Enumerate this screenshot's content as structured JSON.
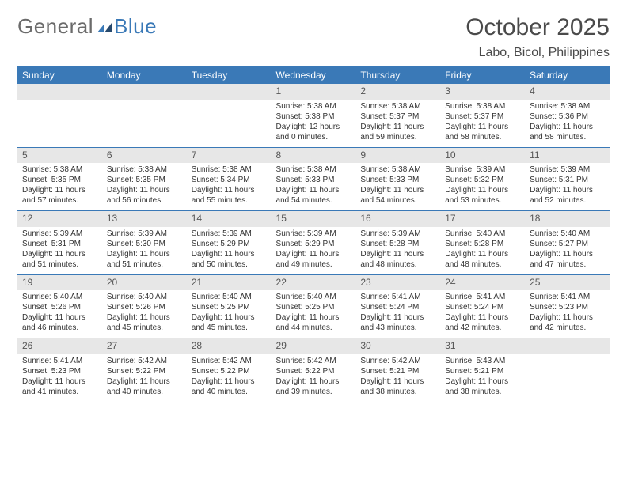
{
  "brand": {
    "general": "General",
    "blue": "Blue"
  },
  "title": "October 2025",
  "subtitle": "Labo, Bicol, Philippines",
  "colors": {
    "header_bg": "#3a79b7",
    "header_text": "#ffffff",
    "daynum_bg": "#e7e7e7",
    "text": "#333333",
    "title_color": "#4a4a4a",
    "logo_gray": "#6b6b6b",
    "logo_blue": "#3a79b7",
    "background": "#ffffff",
    "week_sep": "#3a79b7"
  },
  "typography": {
    "title_fontsize": 30,
    "subtitle_fontsize": 16,
    "dayheader_fontsize": 12,
    "daynum_fontsize": 12,
    "body_fontsize": 10
  },
  "day_headers": [
    "Sunday",
    "Monday",
    "Tuesday",
    "Wednesday",
    "Thursday",
    "Friday",
    "Saturday"
  ],
  "weeks": [
    [
      null,
      null,
      null,
      {
        "num": "1",
        "sunrise": "5:38 AM",
        "sunset": "5:38 PM",
        "dl1": "Daylight: 12 hours",
        "dl2": "and 0 minutes."
      },
      {
        "num": "2",
        "sunrise": "5:38 AM",
        "sunset": "5:37 PM",
        "dl1": "Daylight: 11 hours",
        "dl2": "and 59 minutes."
      },
      {
        "num": "3",
        "sunrise": "5:38 AM",
        "sunset": "5:37 PM",
        "dl1": "Daylight: 11 hours",
        "dl2": "and 58 minutes."
      },
      {
        "num": "4",
        "sunrise": "5:38 AM",
        "sunset": "5:36 PM",
        "dl1": "Daylight: 11 hours",
        "dl2": "and 58 minutes."
      }
    ],
    [
      {
        "num": "5",
        "sunrise": "5:38 AM",
        "sunset": "5:35 PM",
        "dl1": "Daylight: 11 hours",
        "dl2": "and 57 minutes."
      },
      {
        "num": "6",
        "sunrise": "5:38 AM",
        "sunset": "5:35 PM",
        "dl1": "Daylight: 11 hours",
        "dl2": "and 56 minutes."
      },
      {
        "num": "7",
        "sunrise": "5:38 AM",
        "sunset": "5:34 PM",
        "dl1": "Daylight: 11 hours",
        "dl2": "and 55 minutes."
      },
      {
        "num": "8",
        "sunrise": "5:38 AM",
        "sunset": "5:33 PM",
        "dl1": "Daylight: 11 hours",
        "dl2": "and 54 minutes."
      },
      {
        "num": "9",
        "sunrise": "5:38 AM",
        "sunset": "5:33 PM",
        "dl1": "Daylight: 11 hours",
        "dl2": "and 54 minutes."
      },
      {
        "num": "10",
        "sunrise": "5:39 AM",
        "sunset": "5:32 PM",
        "dl1": "Daylight: 11 hours",
        "dl2": "and 53 minutes."
      },
      {
        "num": "11",
        "sunrise": "5:39 AM",
        "sunset": "5:31 PM",
        "dl1": "Daylight: 11 hours",
        "dl2": "and 52 minutes."
      }
    ],
    [
      {
        "num": "12",
        "sunrise": "5:39 AM",
        "sunset": "5:31 PM",
        "dl1": "Daylight: 11 hours",
        "dl2": "and 51 minutes."
      },
      {
        "num": "13",
        "sunrise": "5:39 AM",
        "sunset": "5:30 PM",
        "dl1": "Daylight: 11 hours",
        "dl2": "and 51 minutes."
      },
      {
        "num": "14",
        "sunrise": "5:39 AM",
        "sunset": "5:29 PM",
        "dl1": "Daylight: 11 hours",
        "dl2": "and 50 minutes."
      },
      {
        "num": "15",
        "sunrise": "5:39 AM",
        "sunset": "5:29 PM",
        "dl1": "Daylight: 11 hours",
        "dl2": "and 49 minutes."
      },
      {
        "num": "16",
        "sunrise": "5:39 AM",
        "sunset": "5:28 PM",
        "dl1": "Daylight: 11 hours",
        "dl2": "and 48 minutes."
      },
      {
        "num": "17",
        "sunrise": "5:40 AM",
        "sunset": "5:28 PM",
        "dl1": "Daylight: 11 hours",
        "dl2": "and 48 minutes."
      },
      {
        "num": "18",
        "sunrise": "5:40 AM",
        "sunset": "5:27 PM",
        "dl1": "Daylight: 11 hours",
        "dl2": "and 47 minutes."
      }
    ],
    [
      {
        "num": "19",
        "sunrise": "5:40 AM",
        "sunset": "5:26 PM",
        "dl1": "Daylight: 11 hours",
        "dl2": "and 46 minutes."
      },
      {
        "num": "20",
        "sunrise": "5:40 AM",
        "sunset": "5:26 PM",
        "dl1": "Daylight: 11 hours",
        "dl2": "and 45 minutes."
      },
      {
        "num": "21",
        "sunrise": "5:40 AM",
        "sunset": "5:25 PM",
        "dl1": "Daylight: 11 hours",
        "dl2": "and 45 minutes."
      },
      {
        "num": "22",
        "sunrise": "5:40 AM",
        "sunset": "5:25 PM",
        "dl1": "Daylight: 11 hours",
        "dl2": "and 44 minutes."
      },
      {
        "num": "23",
        "sunrise": "5:41 AM",
        "sunset": "5:24 PM",
        "dl1": "Daylight: 11 hours",
        "dl2": "and 43 minutes."
      },
      {
        "num": "24",
        "sunrise": "5:41 AM",
        "sunset": "5:24 PM",
        "dl1": "Daylight: 11 hours",
        "dl2": "and 42 minutes."
      },
      {
        "num": "25",
        "sunrise": "5:41 AM",
        "sunset": "5:23 PM",
        "dl1": "Daylight: 11 hours",
        "dl2": "and 42 minutes."
      }
    ],
    [
      {
        "num": "26",
        "sunrise": "5:41 AM",
        "sunset": "5:23 PM",
        "dl1": "Daylight: 11 hours",
        "dl2": "and 41 minutes."
      },
      {
        "num": "27",
        "sunrise": "5:42 AM",
        "sunset": "5:22 PM",
        "dl1": "Daylight: 11 hours",
        "dl2": "and 40 minutes."
      },
      {
        "num": "28",
        "sunrise": "5:42 AM",
        "sunset": "5:22 PM",
        "dl1": "Daylight: 11 hours",
        "dl2": "and 40 minutes."
      },
      {
        "num": "29",
        "sunrise": "5:42 AM",
        "sunset": "5:22 PM",
        "dl1": "Daylight: 11 hours",
        "dl2": "and 39 minutes."
      },
      {
        "num": "30",
        "sunrise": "5:42 AM",
        "sunset": "5:21 PM",
        "dl1": "Daylight: 11 hours",
        "dl2": "and 38 minutes."
      },
      {
        "num": "31",
        "sunrise": "5:43 AM",
        "sunset": "5:21 PM",
        "dl1": "Daylight: 11 hours",
        "dl2": "and 38 minutes."
      },
      null
    ]
  ]
}
